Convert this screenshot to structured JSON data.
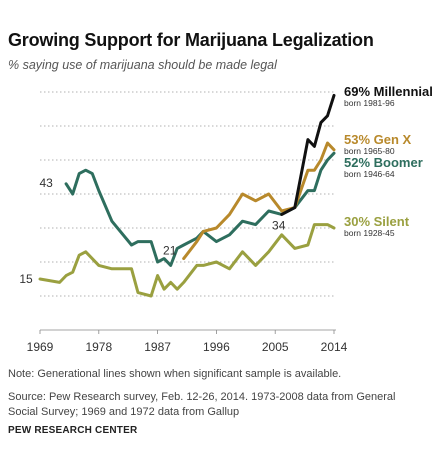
{
  "header": {
    "title": "Growing Support for Marijuana Legalization",
    "subtitle": "% saying use of marijuana should be made legal"
  },
  "footer": {
    "note": "Note: Generational lines shown when significant sample is available.",
    "source": "Source: Pew Research survey, Feb. 12-26, 2014. 1973-2008 data from General Social Survey; 1969 and 1972 data from Gallup",
    "org": "PEW RESEARCH CENTER"
  },
  "chart_data": {
    "type": "line",
    "title": "Growing Support for Marijuana Legalization",
    "subtitle": "% saying use of marijuana should be made legal",
    "xlabel": "",
    "ylabel": "",
    "xlim": [
      1969,
      2014
    ],
    "ylim": [
      0,
      75
    ],
    "grid": true,
    "x_ticks": [
      "1969",
      "1978",
      "1987",
      "1996",
      "2005",
      "2014"
    ],
    "annotations": [
      {
        "text": "15",
        "x": 1969,
        "y": 15
      },
      {
        "text": "43",
        "x": 1973,
        "y": 43
      },
      {
        "text": "21",
        "x": 1991,
        "y": 21
      },
      {
        "text": "34",
        "x": 2006,
        "y": 34
      }
    ],
    "series": [
      {
        "name": "Silent",
        "label": "30% Silent",
        "sublabel": "born 1928-45",
        "color": "#9aa040",
        "points": [
          [
            1969,
            15
          ],
          [
            1972,
            14
          ],
          [
            1973,
            16
          ],
          [
            1974,
            17
          ],
          [
            1975,
            22
          ],
          [
            1976,
            23
          ],
          [
            1978,
            19
          ],
          [
            1980,
            18
          ],
          [
            1983,
            18
          ],
          [
            1984,
            11
          ],
          [
            1986,
            10
          ],
          [
            1987,
            16
          ],
          [
            1988,
            12
          ],
          [
            1989,
            14
          ],
          [
            1990,
            12
          ],
          [
            1991,
            14
          ],
          [
            1993,
            19
          ],
          [
            1994,
            19
          ],
          [
            1996,
            20
          ],
          [
            1998,
            18
          ],
          [
            2000,
            23
          ],
          [
            2002,
            19
          ],
          [
            2004,
            23
          ],
          [
            2006,
            28
          ],
          [
            2008,
            24
          ],
          [
            2010,
            25
          ],
          [
            2011,
            31
          ],
          [
            2012,
            31
          ],
          [
            2013,
            31
          ],
          [
            2014,
            30
          ]
        ]
      },
      {
        "name": "Boomer",
        "label": "52% Boomer",
        "sublabel": "born 1946-64",
        "color": "#2e6e5e",
        "points": [
          [
            1973,
            43
          ],
          [
            1974,
            40
          ],
          [
            1975,
            46
          ],
          [
            1976,
            47
          ],
          [
            1977,
            46
          ],
          [
            1978,
            41
          ],
          [
            1980,
            32
          ],
          [
            1983,
            25
          ],
          [
            1984,
            26
          ],
          [
            1986,
            26
          ],
          [
            1987,
            20
          ],
          [
            1988,
            21
          ],
          [
            1989,
            19
          ],
          [
            1990,
            24
          ],
          [
            1991,
            25
          ],
          [
            1993,
            27
          ],
          [
            1994,
            29
          ],
          [
            1996,
            26
          ],
          [
            1998,
            28
          ],
          [
            2000,
            32
          ],
          [
            2002,
            31
          ],
          [
            2004,
            35
          ],
          [
            2006,
            34
          ],
          [
            2008,
            36
          ],
          [
            2010,
            41
          ],
          [
            2011,
            41
          ],
          [
            2012,
            47
          ],
          [
            2013,
            50
          ],
          [
            2014,
            52
          ]
        ]
      },
      {
        "name": "Gen X",
        "label": "53% Gen X",
        "sublabel": "born 1965-80",
        "color": "#b8892b",
        "points": [
          [
            1991,
            21
          ],
          [
            1993,
            26
          ],
          [
            1994,
            29
          ],
          [
            1996,
            30
          ],
          [
            1998,
            34
          ],
          [
            2000,
            40
          ],
          [
            2002,
            38
          ],
          [
            2004,
            40
          ],
          [
            2006,
            35
          ],
          [
            2008,
            36
          ],
          [
            2010,
            47
          ],
          [
            2011,
            47
          ],
          [
            2012,
            50
          ],
          [
            2013,
            55
          ],
          [
            2014,
            53
          ]
        ]
      },
      {
        "name": "Millennial",
        "label": "69% Millennial",
        "sublabel": "born 1981-96",
        "color": "#111111",
        "points": [
          [
            2006,
            34
          ],
          [
            2008,
            36
          ],
          [
            2010,
            56
          ],
          [
            2011,
            54
          ],
          [
            2012,
            61
          ],
          [
            2013,
            63
          ],
          [
            2014,
            69
          ]
        ]
      }
    ]
  }
}
